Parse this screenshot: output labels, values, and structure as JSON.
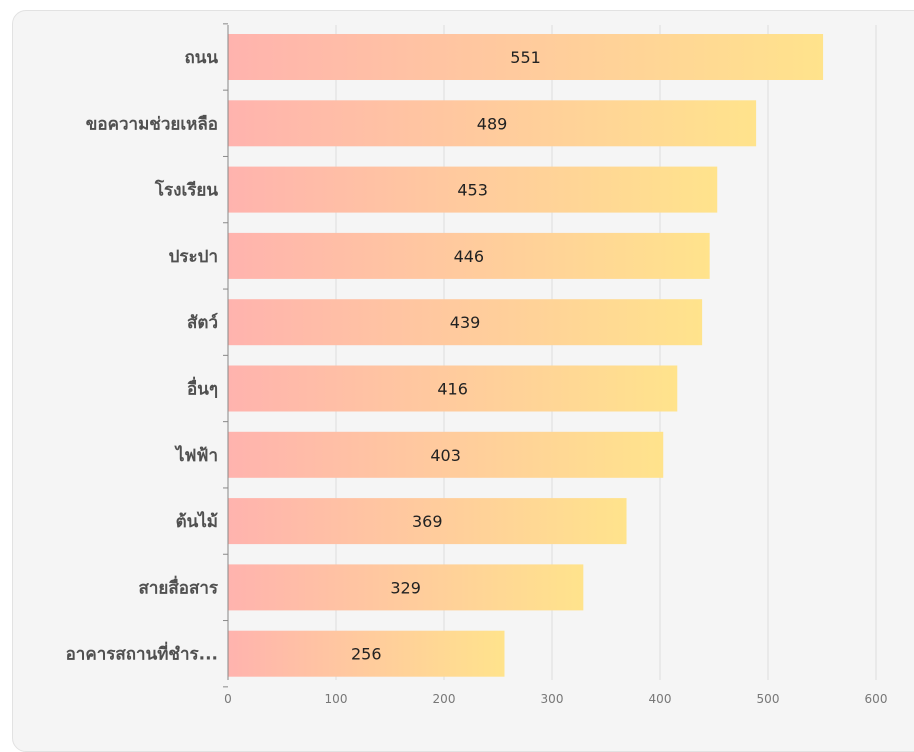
{
  "chart_data": {
    "type": "bar",
    "orientation": "horizontal",
    "categories": [
      "ถนน",
      "ขอความช่วยเหลือ",
      "โรงเรียน",
      "ประปา",
      "สัตว์",
      "อื่นๆ",
      "ไฟฟ้า",
      "ต้นไม้",
      "สายสื่อสาร",
      "อาคารสถานที่ชำร..."
    ],
    "values": [
      551,
      489,
      453,
      446,
      439,
      416,
      403,
      369,
      329,
      256
    ],
    "xlim": [
      0,
      600
    ],
    "xticks": [
      0,
      100,
      200,
      300,
      400,
      500,
      600
    ],
    "grid": true,
    "colors": {
      "gradient_start": "#ffb3ae",
      "gradient_end": "#ffe38c",
      "grid": "#dddddd",
      "axis": "#888888"
    }
  }
}
